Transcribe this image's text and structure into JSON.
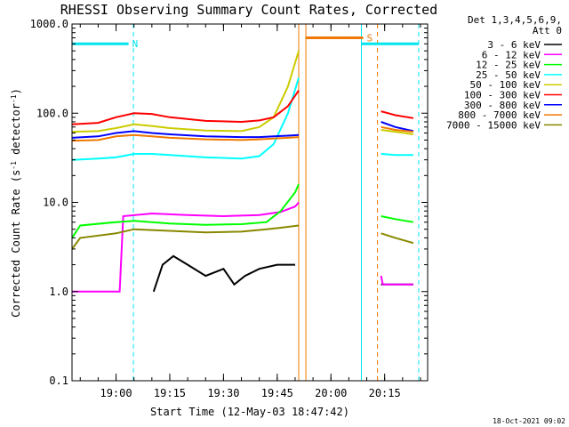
{
  "chart_data": {
    "type": "line",
    "title": "RHESSI Observing Summary Count Rates, Corrected",
    "xlabel": "Start Time (12-May-03 18:47:42)",
    "ylabel_main": "Corrected Count Rate (s",
    "ylabel_sup1": "-1",
    "ylabel_mid": " detector",
    "ylabel_sup2": "-1",
    "ylabel_end": ")",
    "y_scale": "log",
    "ylim": [
      0.1,
      1000
    ],
    "xlim": [
      "18:47:42",
      "20:27:00"
    ],
    "x_ticks": [
      "19:00",
      "19:15",
      "19:30",
      "19:45",
      "20:00",
      "20:15"
    ],
    "y_ticks": [
      "0.1",
      "1.0",
      "10.0",
      "100.0",
      "1000.0"
    ],
    "legend_header": [
      "Det 1,3,4,5,6,9,",
      "Att 0"
    ],
    "footer_date": "18-Oct-2021 09:02",
    "background_color": "#ffffff",
    "flags": [
      {
        "label": "N",
        "color": "#00e5ee",
        "start": "18:47:42",
        "end": "19:03:30",
        "level": 600
      },
      {
        "label": "S",
        "color": "#f07800",
        "start": "19:53:00",
        "end": "20:09:00",
        "level": 700
      },
      {
        "label": "",
        "color": "#00e5ee",
        "start": "20:08:30",
        "end": "20:24:30",
        "level": 600
      }
    ],
    "vlines": [
      {
        "time": "18:47:42",
        "color": "#00e5ee",
        "dash": false
      },
      {
        "time": "19:04:50",
        "color": "#00e5ee",
        "dash": true
      },
      {
        "time": "19:53:00",
        "color": "#f07800",
        "dash": false
      },
      {
        "time": "19:51:00",
        "color": "#f07800",
        "dash": false
      },
      {
        "time": "20:08:30",
        "color": "#00e5ee",
        "dash": false
      },
      {
        "time": "20:13:00",
        "color": "#f07800",
        "dash": true
      },
      {
        "time": "20:24:30",
        "color": "#00e5ee",
        "dash": true
      }
    ],
    "series": [
      {
        "name": "3 - 6 keV",
        "color": "#000000",
        "points": [
          [
            "19:10:30",
            1.0
          ],
          [
            "19:13:00",
            2.0
          ],
          [
            "19:16:00",
            2.5
          ],
          [
            "19:20:00",
            2.0
          ],
          [
            "19:25:00",
            1.5
          ],
          [
            "19:30:00",
            1.8
          ],
          [
            "19:33:00",
            1.2
          ],
          [
            "19:36:00",
            1.5
          ],
          [
            "19:40:00",
            1.8
          ],
          [
            "19:45:00",
            2.0
          ],
          [
            "19:48:00",
            2.0
          ],
          [
            "19:50:00",
            2.0
          ]
        ],
        "points2": [
          [
            "20:14:00",
            1.2
          ],
          [
            "20:23:00",
            1.2
          ]
        ]
      },
      {
        "name": "6 - 12 keV",
        "color": "#ff00ff",
        "points": [
          [
            "18:47:42",
            1.0
          ],
          [
            "19:00:00",
            1.0
          ],
          [
            "19:01:00",
            1.0
          ],
          [
            "19:02:00",
            7.0
          ],
          [
            "19:10:00",
            7.5
          ],
          [
            "19:20:00",
            7.2
          ],
          [
            "19:30:00",
            7.0
          ],
          [
            "19:40:00",
            7.2
          ],
          [
            "19:46:00",
            7.8
          ],
          [
            "19:50:00",
            9.0
          ],
          [
            "19:51:00",
            10.0
          ]
        ],
        "points2": [
          [
            "20:14:00",
            1.5
          ],
          [
            "20:14:30",
            1.2
          ],
          [
            "20:23:00",
            1.2
          ]
        ]
      },
      {
        "name": "12 - 25 keV",
        "color": "#00ff00",
        "points": [
          [
            "18:47:42",
            4.0
          ],
          [
            "18:50:00",
            5.5
          ],
          [
            "19:00:00",
            6.0
          ],
          [
            "19:05:00",
            6.2
          ],
          [
            "19:15:00",
            5.8
          ],
          [
            "19:25:00",
            5.6
          ],
          [
            "19:35:00",
            5.7
          ],
          [
            "19:42:00",
            6.0
          ],
          [
            "19:46:00",
            8.0
          ],
          [
            "19:50:00",
            13.0
          ],
          [
            "19:51:00",
            16.0
          ]
        ],
        "points2": [
          [
            "20:14:00",
            7.0
          ],
          [
            "20:18:00",
            6.5
          ],
          [
            "20:23:00",
            6.0
          ]
        ]
      },
      {
        "name": "25 - 50 keV",
        "color": "#00ffff",
        "points": [
          [
            "18:47:42",
            30
          ],
          [
            "18:55:00",
            31
          ],
          [
            "19:00:00",
            32
          ],
          [
            "19:05:00",
            35
          ],
          [
            "19:10:00",
            35
          ],
          [
            "19:15:00",
            34
          ],
          [
            "19:25:00",
            32
          ],
          [
            "19:35:00",
            31
          ],
          [
            "19:40:00",
            33
          ],
          [
            "19:44:00",
            45
          ],
          [
            "19:48:00",
            100
          ],
          [
            "19:51:00",
            250
          ]
        ],
        "points2": [
          [
            "20:14:00",
            35
          ],
          [
            "20:18:00",
            34
          ],
          [
            "20:23:00",
            34
          ]
        ]
      },
      {
        "name": "50 - 100 keV",
        "color": "#cccc00",
        "points": [
          [
            "18:47:42",
            62
          ],
          [
            "18:55:00",
            63
          ],
          [
            "19:00:00",
            68
          ],
          [
            "19:05:00",
            75
          ],
          [
            "19:10:00",
            72
          ],
          [
            "19:15:00",
            68
          ],
          [
            "19:25:00",
            64
          ],
          [
            "19:35:00",
            63
          ],
          [
            "19:40:00",
            70
          ],
          [
            "19:44:00",
            90
          ],
          [
            "19:48:00",
            200
          ],
          [
            "19:51:00",
            500
          ]
        ],
        "points2": [
          [
            "20:14:00",
            65
          ],
          [
            "20:18:00",
            62
          ],
          [
            "20:23:00",
            58
          ]
        ]
      },
      {
        "name": "100 - 300 keV",
        "color": "#ff0000",
        "points": [
          [
            "18:47:42",
            75
          ],
          [
            "18:55:00",
            78
          ],
          [
            "19:00:00",
            90
          ],
          [
            "19:05:00",
            100
          ],
          [
            "19:10:00",
            98
          ],
          [
            "19:15:00",
            90
          ],
          [
            "19:25:00",
            82
          ],
          [
            "19:35:00",
            80
          ],
          [
            "19:40:00",
            83
          ],
          [
            "19:44:00",
            90
          ],
          [
            "19:48:00",
            120
          ],
          [
            "19:51:00",
            180
          ]
        ],
        "points2": [
          [
            "20:14:00",
            105
          ],
          [
            "20:18:00",
            95
          ],
          [
            "20:23:00",
            88
          ]
        ]
      },
      {
        "name": "300 - 800 keV",
        "color": "#0000ff",
        "points": [
          [
            "18:47:42",
            53
          ],
          [
            "18:55:00",
            55
          ],
          [
            "19:00:00",
            60
          ],
          [
            "19:05:00",
            63
          ],
          [
            "19:10:00",
            60
          ],
          [
            "19:15:00",
            58
          ],
          [
            "19:25:00",
            55
          ],
          [
            "19:35:00",
            54
          ],
          [
            "19:40:00",
            54
          ],
          [
            "19:44:00",
            55
          ],
          [
            "19:48:00",
            56
          ],
          [
            "19:51:00",
            57
          ]
        ],
        "points2": [
          [
            "20:14:00",
            80
          ],
          [
            "20:18:00",
            70
          ],
          [
            "20:23:00",
            63
          ]
        ]
      },
      {
        "name": "800 - 7000 keV",
        "color": "#f07800",
        "points": [
          [
            "18:47:42",
            49
          ],
          [
            "18:55:00",
            50
          ],
          [
            "19:00:00",
            55
          ],
          [
            "19:05:00",
            57
          ],
          [
            "19:10:00",
            55
          ],
          [
            "19:15:00",
            53
          ],
          [
            "19:25:00",
            51
          ],
          [
            "19:35:00",
            50
          ],
          [
            "19:40:00",
            51
          ],
          [
            "19:44:00",
            52
          ],
          [
            "19:48:00",
            53
          ],
          [
            "19:51:00",
            54
          ]
        ],
        "points2": [
          [
            "20:14:00",
            70
          ],
          [
            "20:18:00",
            65
          ],
          [
            "20:23:00",
            62
          ]
        ]
      },
      {
        "name": "7000 - 15000 keV",
        "color": "#888800",
        "points": [
          [
            "18:47:42",
            3.0
          ],
          [
            "18:50:00",
            4.0
          ],
          [
            "19:00:00",
            4.5
          ],
          [
            "19:05:00",
            5.0
          ],
          [
            "19:15:00",
            4.8
          ],
          [
            "19:25:00",
            4.6
          ],
          [
            "19:35:00",
            4.7
          ],
          [
            "19:42:00",
            5.0
          ],
          [
            "19:46:00",
            5.2
          ],
          [
            "19:51:00",
            5.5
          ]
        ],
        "points2": [
          [
            "20:14:00",
            4.5
          ],
          [
            "20:18:00",
            4.0
          ],
          [
            "20:23:00",
            3.5
          ]
        ]
      }
    ]
  }
}
